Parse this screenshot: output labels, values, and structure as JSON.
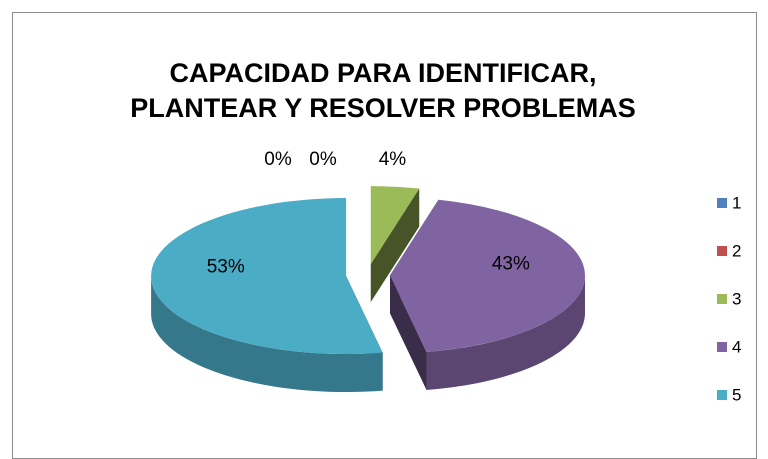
{
  "chart_data": {
    "type": "pie",
    "title": [
      "CAPACIDAD PARA IDENTIFICAR,",
      "PLANTEAR Y RESOLVER PROBLEMAS"
    ],
    "categories": [
      "1",
      "2",
      "3",
      "4",
      "5"
    ],
    "values": [
      0,
      0,
      4,
      43,
      53
    ],
    "value_labels": [
      "0%",
      "0%",
      "4%",
      "43%",
      "53%"
    ],
    "colors": [
      "#4f81bd",
      "#c0504d",
      "#9bbb59",
      "#8064a2",
      "#4bacc6"
    ],
    "legend": "right"
  }
}
